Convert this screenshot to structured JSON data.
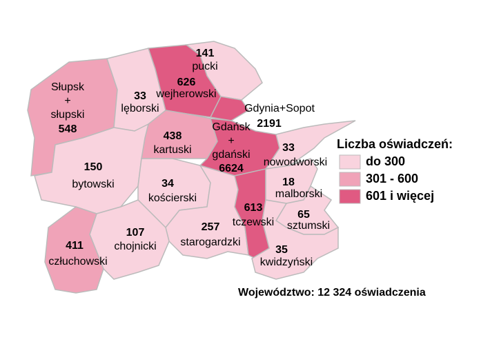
{
  "legend": {
    "title": "Liczba oświadczeń:",
    "items": [
      {
        "label": "do 300",
        "color": "#f9d3de"
      },
      {
        "label": "301 - 600",
        "color": "#f0a3b8"
      },
      {
        "label": "601 i więcej",
        "color": "#e05a82"
      }
    ]
  },
  "regions": [
    {
      "lines": [
        "Słupsk",
        "+",
        "słupski"
      ],
      "value": 548,
      "color": "#f0a3b8"
    },
    {
      "lines": [
        "lęborski"
      ],
      "value": 33,
      "color": "#f9d3de"
    },
    {
      "lines": [
        "wejherowski"
      ],
      "value": 626,
      "color": "#e05a82"
    },
    {
      "lines": [
        "pucki"
      ],
      "value": 141,
      "color": "#f9d3de"
    },
    {
      "lines": [
        "Gdynia+Sopot"
      ],
      "value": 2191,
      "color": "#e05a82"
    },
    {
      "lines": [
        "kartuski"
      ],
      "value": 438,
      "color": "#f0a3b8"
    },
    {
      "lines": [
        "Gdańsk",
        "+",
        "gdański"
      ],
      "value": 6624,
      "color": "#e05a82"
    },
    {
      "lines": [
        "nowodworski"
      ],
      "value": 33,
      "color": "#f9d3de"
    },
    {
      "lines": [
        "bytowski"
      ],
      "value": 150,
      "color": "#f9d3de"
    },
    {
      "lines": [
        "kościerski"
      ],
      "value": 34,
      "color": "#f9d3de"
    },
    {
      "lines": [
        "starogardzki"
      ],
      "value": 257,
      "color": "#f9d3de"
    },
    {
      "lines": [
        "tczewski"
      ],
      "value": 613,
      "color": "#e05a82"
    },
    {
      "lines": [
        "malborski"
      ],
      "value": 18,
      "color": "#f9d3de"
    },
    {
      "lines": [
        "sztumski"
      ],
      "value": 65,
      "color": "#f9d3de"
    },
    {
      "lines": [
        "kwidzyński"
      ],
      "value": 35,
      "color": "#f9d3de"
    },
    {
      "lines": [
        "chojnicki"
      ],
      "value": 107,
      "color": "#f9d3de"
    },
    {
      "lines": [
        "człuchowski"
      ],
      "value": 411,
      "color": "#f0a3b8"
    }
  ],
  "footer": "Województwo: 12 324 oświadczenia"
}
